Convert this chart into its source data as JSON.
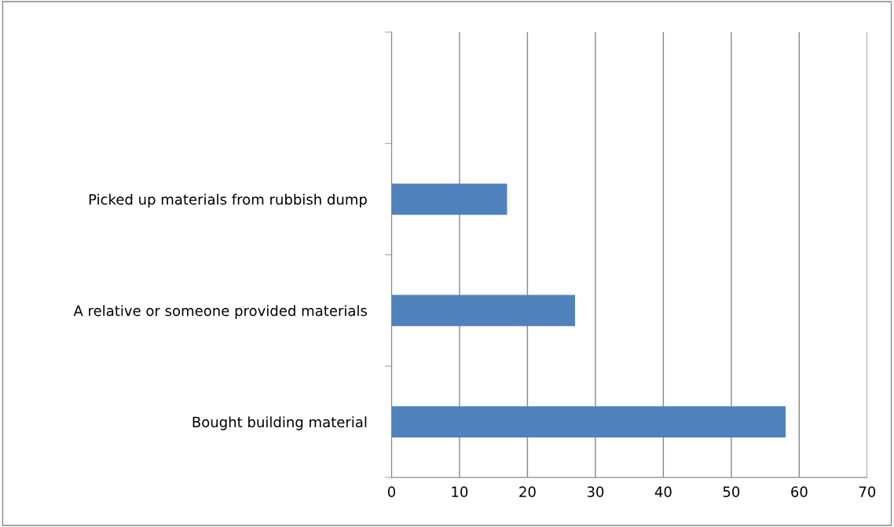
{
  "chart_data": {
    "type": "bar",
    "orientation": "horizontal",
    "categories": [
      null,
      "Picked up materials from rubbish dump",
      "A relative or someone provided materials",
      "Bought building material"
    ],
    "values": [
      null,
      17,
      27,
      58
    ],
    "color": "#4f81bd",
    "xlim": [
      0,
      70
    ],
    "xticks": [
      0,
      10,
      20,
      30,
      40,
      50,
      60,
      70
    ],
    "grid": "x",
    "legend": false
  }
}
